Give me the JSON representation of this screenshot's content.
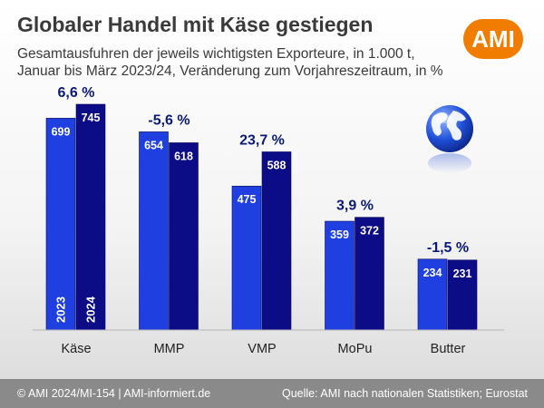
{
  "header": {
    "title": "Globaler Handel mit Käse gestiegen",
    "subtitle_line1": "Gesamtausfuhren der jeweils wichtigsten Exporteure, in 1.000 t,",
    "subtitle_line2": "Januar bis März 2023/24, Veränderung zum Vorjahreszeitraum, in %"
  },
  "logo": {
    "text": "AMI",
    "color": "#f07d00"
  },
  "footer": {
    "left": "© AMI 2024/MI-154 | AMI-informiert.de",
    "right": "Quelle:  AMI nach nationalen Statistiken; Eurostat"
  },
  "chart_data": {
    "type": "bar",
    "categories": [
      "Käse",
      "MMP",
      "VMP",
      "MoPu",
      "Butter"
    ],
    "series": [
      {
        "name": "2023",
        "values": [
          699,
          654,
          475,
          359,
          234
        ],
        "color": "#1f3fe0"
      },
      {
        "name": "2024",
        "values": [
          745,
          618,
          588,
          372,
          231
        ],
        "color": "#0c0c86"
      }
    ],
    "changes": [
      "6,6 %",
      "-5,6 %",
      "23,7 %",
      "3,9 %",
      "-1,5 %"
    ],
    "ylim": [
      0,
      760
    ],
    "grid": false,
    "icon": "globe-icon"
  }
}
